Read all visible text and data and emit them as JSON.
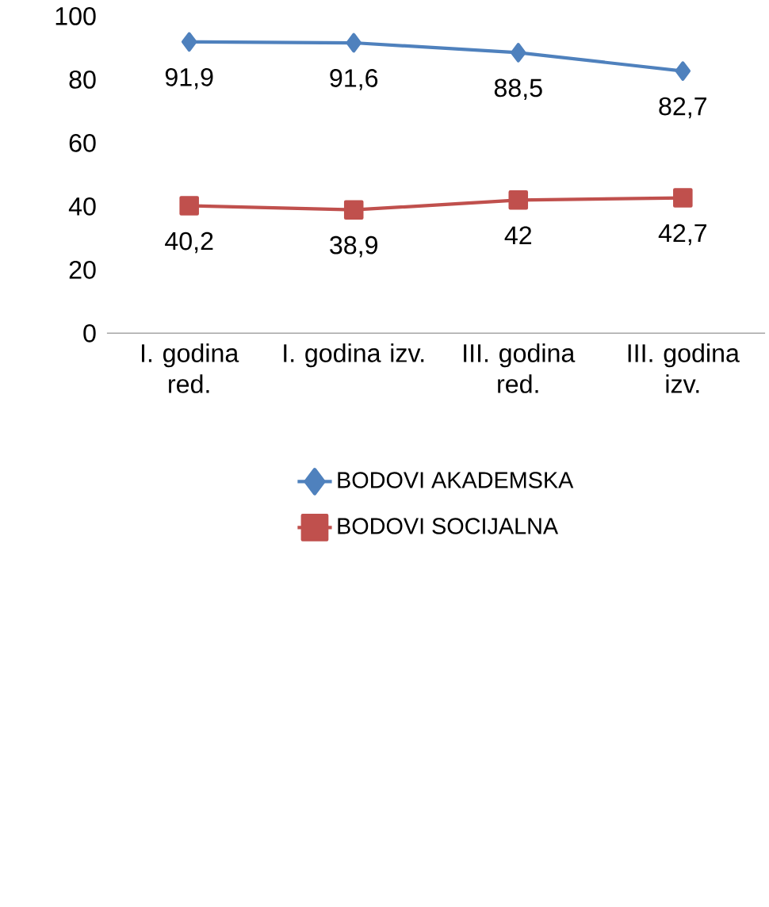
{
  "chart_data": {
    "type": "line",
    "categories": [
      "I. godina red.",
      "I. godina izv.",
      "III. godina red.",
      "III. godina izv."
    ],
    "series": [
      {
        "name": "BODOVI AKADEMSKA",
        "color": "#4f81bd",
        "marker": "diamond",
        "values": [
          91.9,
          91.6,
          88.5,
          82.7
        ],
        "value_labels": [
          "91,9",
          "91,6",
          "88,5",
          "82,7"
        ]
      },
      {
        "name": "BODOVI SOCIJALNA",
        "color": "#c0504d",
        "marker": "square",
        "values": [
          40.2,
          38.9,
          42,
          42.7
        ],
        "value_labels": [
          "40,2",
          "38,9",
          "42",
          "42,7"
        ]
      }
    ],
    "ylim": [
      0,
      100
    ],
    "yticks": [
      0,
      20,
      40,
      60,
      80,
      100
    ],
    "legend": "bottom",
    "line_style": "solid"
  }
}
